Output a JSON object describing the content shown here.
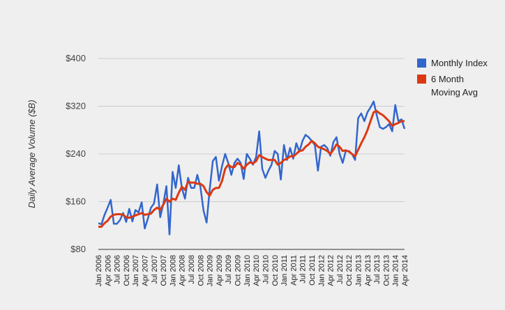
{
  "chart_data": {
    "type": "line",
    "title": "",
    "xlabel": "",
    "ylabel": "Daily Average Volume ($B)",
    "ylim": [
      80,
      400
    ],
    "yticks": [
      80,
      160,
      240,
      320,
      400
    ],
    "ytick_labels": [
      "$80",
      "$160",
      "$240",
      "$320",
      "$400"
    ],
    "grid": true,
    "legend_position": "right",
    "x_start": {
      "year": 2006,
      "month": 1
    },
    "xtick_labels": [
      "Jan 2006",
      "Apr 2006",
      "Jul 2006",
      "Oct 2006",
      "Jan 2007",
      "Apr 2007",
      "Jul 2007",
      "Oct 2007",
      "Jan 2008",
      "Apr 2008",
      "Jul 2008",
      "Oct 2008",
      "Jan 2009",
      "Apr 2009",
      "Jul 2009",
      "Oct 2009",
      "Jan 2010",
      "Apr 2010",
      "Jul 2010",
      "Oct 2010",
      "Jan 2011",
      "Apr 2011",
      "Jul 2011",
      "Oct 2011",
      "Jan 2012",
      "Apr 2012",
      "Jul 2012",
      "Oct 2012",
      "Jan 2013",
      "Apr 2013",
      "Jul 2013",
      "Oct 2013",
      "Jan 2014",
      "Apr 2014"
    ],
    "series": [
      {
        "name": "Monthly Index",
        "color": "#3366cc",
        "values": [
          124,
          122,
          138,
          150,
          163,
          123,
          123,
          129,
          141,
          126,
          148,
          127,
          146,
          142,
          159,
          115,
          131,
          150,
          157,
          189,
          134,
          156,
          186,
          105,
          210,
          183,
          221,
          183,
          165,
          200,
          183,
          183,
          205,
          185,
          145,
          125,
          180,
          228,
          235,
          195,
          220,
          240,
          225,
          205,
          225,
          232,
          225,
          198,
          240,
          232,
          222,
          235,
          278,
          215,
          200,
          212,
          222,
          245,
          240,
          197,
          255,
          230,
          250,
          232,
          258,
          244,
          262,
          272,
          268,
          262,
          255,
          212,
          252,
          255,
          250,
          237,
          260,
          268,
          240,
          225,
          245,
          245,
          240,
          230,
          300,
          308,
          295,
          310,
          318,
          328,
          305,
          285,
          282,
          285,
          290,
          278,
          322,
          295,
          298,
          282
        ]
      },
      {
        "name": "6 Month Moving Avg",
        "legend_lines": [
          "6 Month",
          "Moving Avg"
        ],
        "color": "#dc3912",
        "values": [
          118,
          118,
          124,
          128,
          135,
          138,
          139,
          139,
          138,
          134,
          133,
          135,
          137,
          139,
          141,
          138,
          139,
          140,
          146,
          150,
          146,
          155,
          165,
          160,
          165,
          163,
          175,
          185,
          180,
          193,
          192,
          192,
          190,
          190,
          186,
          176,
          170,
          180,
          183,
          183,
          195,
          215,
          222,
          218,
          218,
          225,
          222,
          215,
          222,
          226,
          224,
          228,
          238,
          235,
          232,
          230,
          230,
          230,
          222,
          225,
          230,
          232,
          236,
          236,
          240,
          245,
          246,
          252,
          256,
          262,
          258,
          252,
          250,
          248,
          245,
          240,
          247,
          256,
          252,
          245,
          246,
          244,
          240,
          236,
          247,
          258,
          268,
          280,
          295,
          310,
          312,
          308,
          305,
          300,
          295,
          287,
          290,
          292,
          295,
          295
        ]
      }
    ]
  }
}
